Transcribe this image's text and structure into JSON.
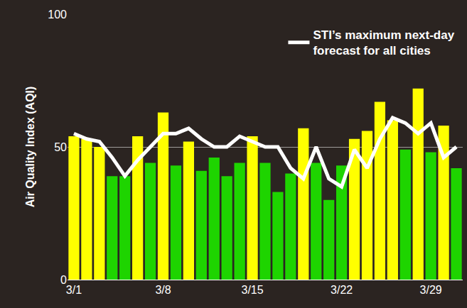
{
  "chart_data": {
    "type": "bar",
    "categories": [
      "3/1",
      null,
      null,
      null,
      null,
      null,
      null,
      "3/8",
      null,
      null,
      null,
      null,
      null,
      null,
      "3/15",
      null,
      null,
      null,
      null,
      null,
      null,
      "3/22",
      null,
      null,
      null,
      null,
      null,
      null,
      "3/29",
      null,
      null
    ],
    "series": [
      {
        "type": "bar",
        "colors": [
          "#ffff00",
          "#ffff00",
          "#ffff00",
          "#1ed400",
          "#1ed400",
          "#ffff00",
          "#1ed400",
          "#ffff00",
          "#1ed400",
          "#ffff00",
          "#1ed400",
          "#1ed400",
          "#1ed400",
          "#1ed400",
          "#ffff00",
          "#1ed400",
          "#1ed400",
          "#1ed400",
          "#ffff00",
          "#1ed400",
          "#1ed400",
          "#1ed400",
          "#ffff00",
          "#ffff00",
          "#ffff00",
          "#ffff00",
          "#1ed400",
          "#ffff00",
          "#1ed400",
          "#ffff00",
          "#1ed400"
        ],
        "values": [
          54,
          53,
          50,
          39,
          39,
          54,
          44,
          63,
          43,
          52,
          41,
          46,
          39,
          44,
          54,
          44,
          33,
          40,
          57,
          44,
          30,
          43,
          53,
          56,
          67,
          60,
          49,
          72,
          48,
          58,
          42
        ]
      },
      {
        "type": "line",
        "name": "STI’s maximum next-day forecast for all cities",
        "color": "#ffffff",
        "values": [
          55,
          53,
          52,
          46,
          39,
          45,
          50,
          55,
          55,
          57,
          53,
          50,
          50,
          54,
          52,
          50,
          50,
          42,
          38,
          50,
          38,
          35,
          49,
          42,
          53,
          61,
          59,
          55,
          59,
          46,
          50
        ]
      }
    ],
    "ylabel": "Air Quality Index (AQI)",
    "ylim": [
      0,
      100
    ],
    "yticks": [
      0,
      50,
      100
    ],
    "grid": true,
    "legend": "top-right"
  }
}
